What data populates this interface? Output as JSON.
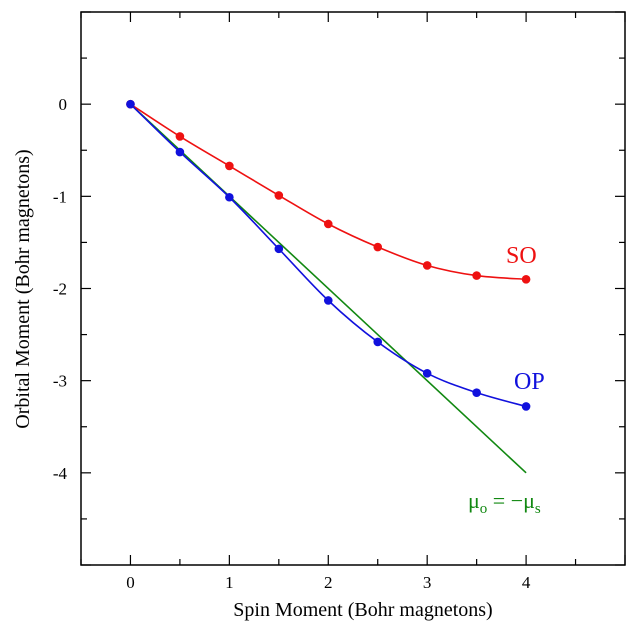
{
  "chart_data": {
    "type": "line",
    "xlabel": "Spin Moment (Bohr magnetons)",
    "ylabel": "Orbital Moment (Bohr magnetons)",
    "xlim": [
      -0.5,
      5.0
    ],
    "ylim": [
      -5.0,
      1.0
    ],
    "x_ticks": [
      0,
      1,
      2,
      3,
      4
    ],
    "x_tick_labels": [
      "0",
      "1",
      "2",
      "3",
      "4"
    ],
    "y_ticks": [
      0,
      -1,
      -2,
      -3,
      -4
    ],
    "y_tick_labels": [
      "0",
      "-1",
      "-2",
      "-3",
      "-4"
    ],
    "grid": false,
    "series": [
      {
        "name": "SO",
        "color": "#ee1111",
        "markers": true,
        "smooth": true,
        "x": [
          0,
          0.5,
          1.0,
          1.5,
          2.0,
          2.5,
          3.0,
          3.5,
          4.0
        ],
        "y": [
          0,
          -0.35,
          -0.67,
          -0.99,
          -1.3,
          -1.55,
          -1.75,
          -1.86,
          -1.9
        ]
      },
      {
        "name": "OP",
        "color": "#1111dd",
        "markers": true,
        "smooth": true,
        "x": [
          0,
          0.5,
          1.0,
          1.5,
          2.0,
          2.5,
          3.0,
          3.5,
          4.0
        ],
        "y": [
          0,
          -0.52,
          -1.01,
          -1.57,
          -2.13,
          -2.58,
          -2.92,
          -3.13,
          -3.28
        ]
      },
      {
        "name": "",
        "color": "#118811",
        "markers": false,
        "smooth": false,
        "x": [
          0,
          4.0
        ],
        "y": [
          0,
          -4.0
        ]
      }
    ],
    "annotation": {
      "mu": "μ",
      "sub_o": "o",
      "equals": " = −",
      "sub_s": "s",
      "color": "#118811"
    }
  }
}
